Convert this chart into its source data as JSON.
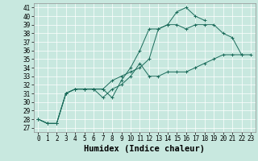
{
  "title": "",
  "xlabel": "Humidex (Indice chaleur)",
  "background_color": "#c8e8df",
  "line_color": "#1a6b5a",
  "xlim": [
    -0.5,
    23.5
  ],
  "ylim": [
    26.5,
    41.5
  ],
  "xticks": [
    0,
    1,
    2,
    3,
    4,
    5,
    6,
    7,
    8,
    9,
    10,
    11,
    12,
    13,
    14,
    15,
    16,
    17,
    18,
    19,
    20,
    21,
    22,
    23
  ],
  "yticks": [
    27,
    28,
    29,
    30,
    31,
    32,
    33,
    34,
    35,
    36,
    37,
    38,
    39,
    40,
    41
  ],
  "series": [
    [
      28.0,
      27.5,
      27.5,
      31.0,
      31.5,
      31.5,
      31.5,
      31.5,
      30.5,
      32.5,
      34.0,
      36.0,
      38.5,
      38.5,
      39.0,
      40.5,
      41.0,
      40.0,
      39.5,
      null,
      null,
      null,
      null,
      null
    ],
    [
      28.0,
      27.5,
      27.5,
      31.0,
      31.5,
      31.5,
      31.5,
      30.5,
      31.5,
      32.0,
      33.0,
      34.5,
      33.0,
      33.0,
      33.5,
      33.5,
      33.5,
      34.0,
      34.5,
      35.0,
      35.5,
      35.5,
      35.5,
      null
    ],
    [
      28.0,
      27.5,
      27.5,
      31.0,
      31.5,
      31.5,
      31.5,
      31.5,
      32.5,
      33.0,
      33.5,
      34.0,
      35.0,
      38.5,
      39.0,
      39.0,
      38.5,
      39.0,
      39.0,
      39.0,
      38.0,
      37.5,
      35.5,
      35.5
    ]
  ],
  "font_family": "monospace",
  "tick_fontsize": 5.5,
  "label_fontsize": 7.5
}
